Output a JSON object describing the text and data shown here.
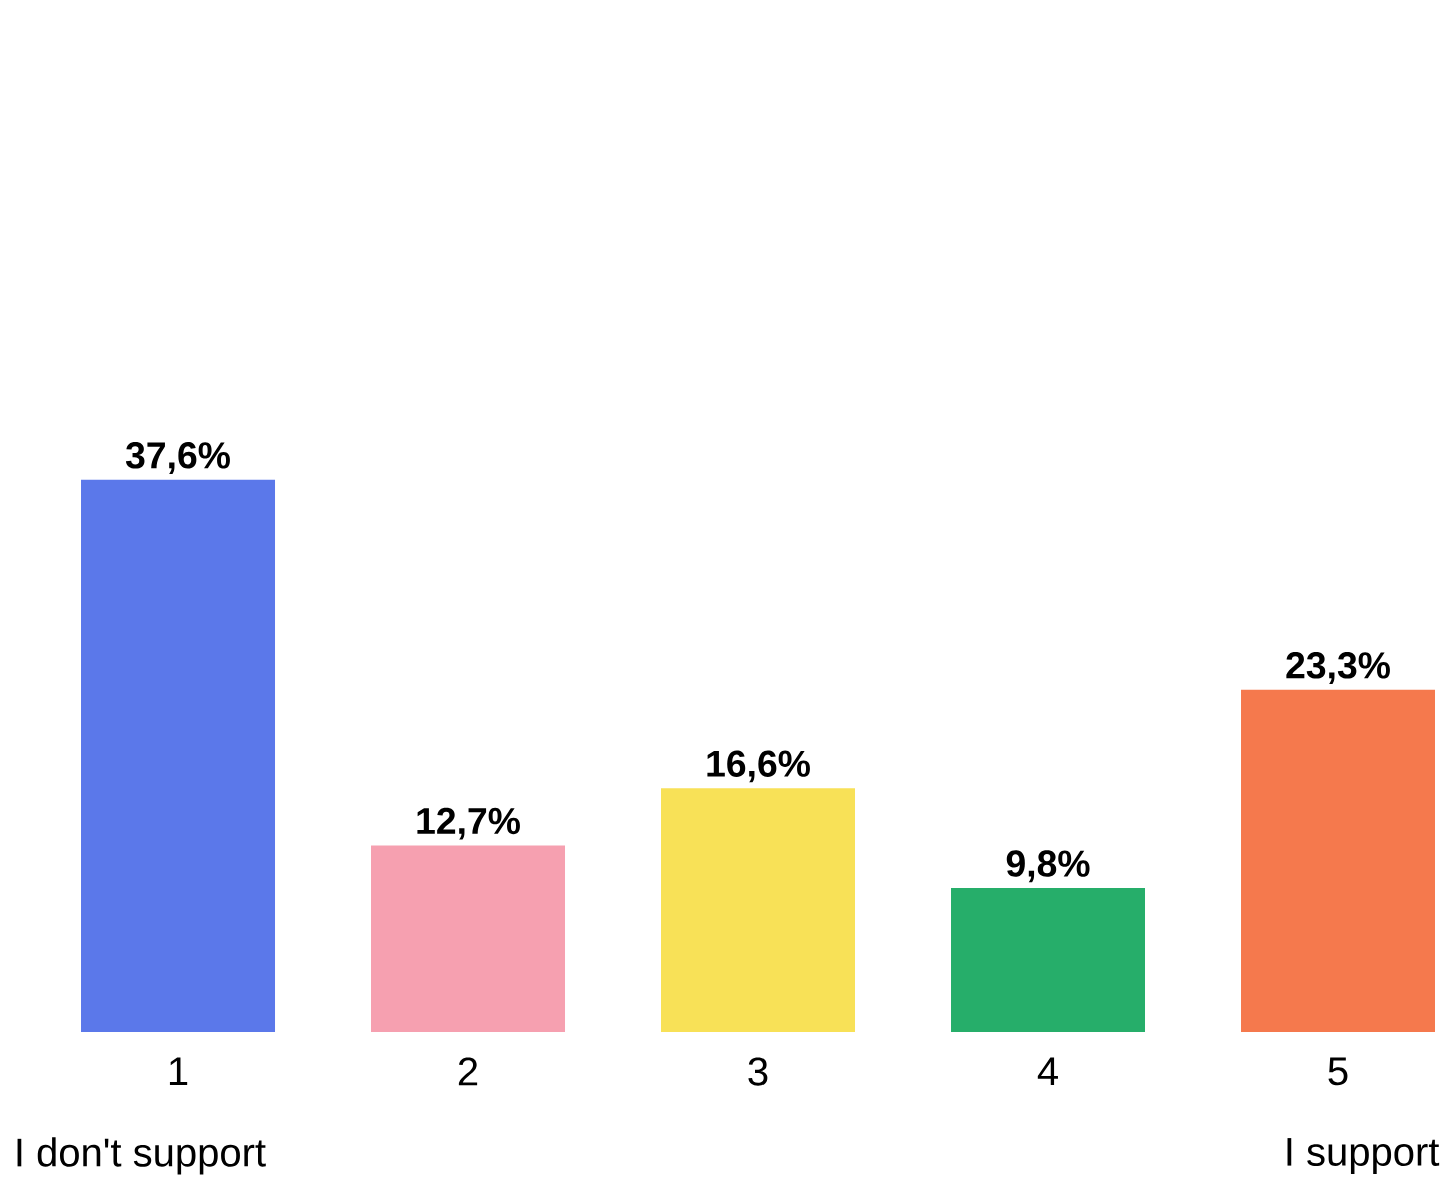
{
  "chart_data": {
    "type": "bar",
    "categories": [
      "1",
      "2",
      "3",
      "4",
      "5"
    ],
    "values": [
      37.6,
      12.7,
      16.6,
      9.8,
      23.3
    ],
    "colors": [
      "#5b78ea",
      "#f6a0b0",
      "#f8e157",
      "#26ae6a",
      "#f5794d"
    ],
    "value_labels": [
      "37,6%",
      "12,7%",
      "16,6%",
      "9,8%",
      "23,3%"
    ],
    "annotations": [
      "I don't support",
      "I support"
    ]
  }
}
